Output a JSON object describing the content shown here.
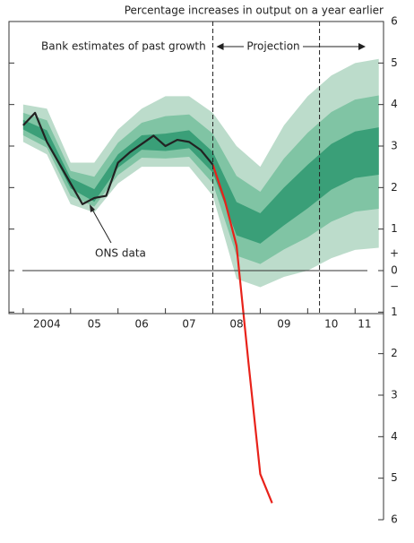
{
  "chart_data": {
    "type": "fan",
    "title": "Percentage increases in output on a year earlier",
    "annotations": {
      "past": "Bank estimates of past growth",
      "projection": "Projection",
      "ons": "ONS data",
      "plus": "+",
      "minus": "−"
    },
    "xlim": [
      2003.7,
      2011.6
    ],
    "ylim": [
      -6,
      6
    ],
    "xticks": [
      {
        "value": 2004.5,
        "label": "2004"
      },
      {
        "value": 2005.5,
        "label": "05"
      },
      {
        "value": 2006.5,
        "label": "06"
      },
      {
        "value": 2007.5,
        "label": "07"
      },
      {
        "value": 2008.5,
        "label": "08"
      },
      {
        "value": 2009.5,
        "label": "09"
      },
      {
        "value": 2010.5,
        "label": "10"
      },
      {
        "value": 2011.2,
        "label": "11"
      }
    ],
    "yticks": [
      6,
      5,
      4,
      3,
      2,
      1,
      0,
      {
        "value": -1,
        "label": "1"
      },
      {
        "value": -2,
        "label": "2"
      },
      {
        "value": -3,
        "label": "3"
      },
      {
        "value": -4,
        "label": "4"
      },
      {
        "value": -5,
        "label": "5"
      },
      {
        "value": -6,
        "label": "6"
      }
    ],
    "dashed_lines": [
      2008.0,
      2010.25
    ],
    "fan": {
      "x": [
        2004.0,
        2004.5,
        2005.0,
        2005.5,
        2006.0,
        2006.5,
        2007.0,
        2007.5,
        2008.0,
        2008.5,
        2009.0,
        2009.5,
        2010.0,
        2010.5,
        2011.0,
        2011.5
      ],
      "bands": [
        {
          "color": "#bcdccb",
          "lower": [
            3.1,
            2.8,
            1.6,
            1.4,
            2.1,
            2.5,
            2.5,
            2.5,
            1.8,
            -0.2,
            -0.4,
            -0.15,
            0.0,
            0.3,
            0.5,
            0.55
          ],
          "upper": [
            4.0,
            3.9,
            2.6,
            2.6,
            3.4,
            3.9,
            4.2,
            4.2,
            3.8,
            3.0,
            2.5,
            3.5,
            4.2,
            4.7,
            5.0,
            5.1
          ]
        },
        {
          "color": "#80c4a4",
          "lower": [
            3.26,
            2.96,
            1.8,
            1.54,
            2.3,
            2.72,
            2.7,
            2.74,
            2.1,
            0.36,
            0.16,
            0.51,
            0.8,
            1.18,
            1.42,
            1.49
          ],
          "upper": [
            3.8,
            3.62,
            2.4,
            2.26,
            3.08,
            3.56,
            3.72,
            3.76,
            3.3,
            2.28,
            1.9,
            2.7,
            3.32,
            3.82,
            4.12,
            4.22
          ]
        },
        {
          "color": "#3a9f78",
          "lower": [
            3.4,
            3.1,
            1.98,
            1.66,
            2.48,
            2.91,
            2.88,
            2.95,
            2.36,
            0.85,
            0.65,
            1.09,
            1.5,
            1.95,
            2.23,
            2.31
          ],
          "upper": [
            3.63,
            3.38,
            2.23,
            1.96,
            2.8,
            3.26,
            3.3,
            3.38,
            2.86,
            1.65,
            1.38,
            2.0,
            2.55,
            3.05,
            3.35,
            3.45
          ]
        }
      ]
    },
    "lines": [
      {
        "color": "#222222",
        "x": [
          2004.0,
          2004.25,
          2004.5,
          2004.75,
          2005.0,
          2005.25,
          2005.5,
          2005.75,
          2006.0,
          2006.25,
          2006.5,
          2006.75,
          2007.0,
          2007.25,
          2007.5,
          2007.75,
          2008.0
        ],
        "values": [
          3.5,
          3.8,
          3.1,
          2.6,
          2.1,
          1.6,
          1.75,
          1.8,
          2.6,
          2.85,
          3.05,
          3.25,
          3.0,
          3.15,
          3.1,
          2.9,
          2.55
        ]
      },
      {
        "color": "#e8221a",
        "x": [
          2008.0,
          2008.25,
          2008.5,
          2008.75,
          2009.0,
          2009.25
        ],
        "values": [
          2.55,
          1.7,
          0.6,
          -2.2,
          -4.9,
          -5.6
        ]
      }
    ]
  }
}
